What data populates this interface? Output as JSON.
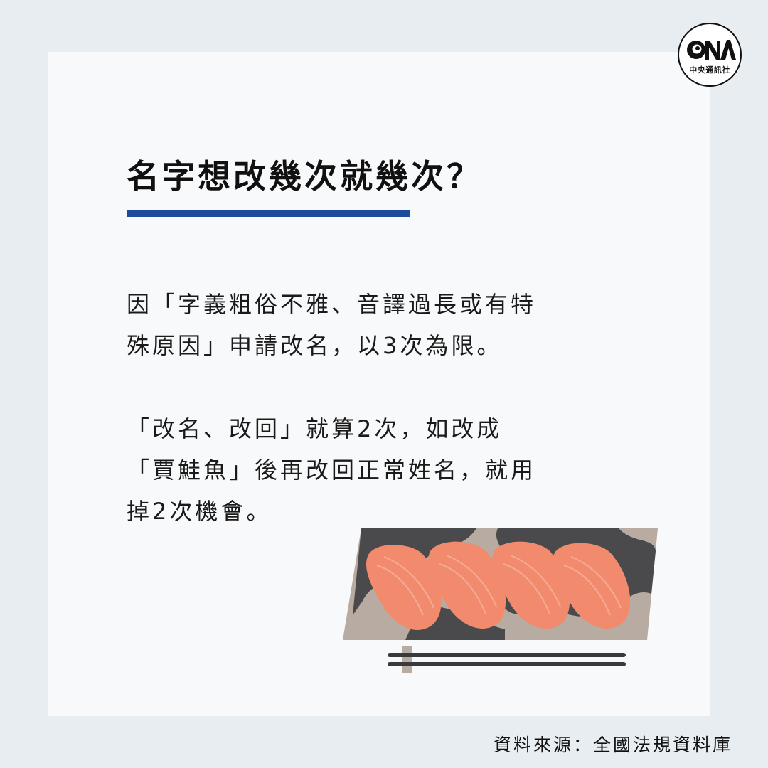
{
  "logo": {
    "text": "中央通訊社",
    "icon": "cna-logo"
  },
  "title": "名字想改幾次就幾次？",
  "paragraph1": {
    "lines": [
      "因「字義粗俗不雅、音譯過長或有特",
      "殊原因」申請改名，以3次為限。"
    ]
  },
  "paragraph2": {
    "lines": [
      "「改名、改回」就算2次，如改成",
      "「賈鮭魚」後再改回正常姓名，就用",
      "掉2次機會。"
    ]
  },
  "source": "資料來源：全國法規資料庫",
  "colors": {
    "background": "#e8edf1",
    "card": "#f8f9fa",
    "accent_bar": "#1f4b9c",
    "salmon": "#f28a6e",
    "plate": "#b8aca2",
    "plate_dark": "#4a4a4c"
  },
  "illustration": {
    "icon": "salmon-sushi-plate-illustration"
  }
}
